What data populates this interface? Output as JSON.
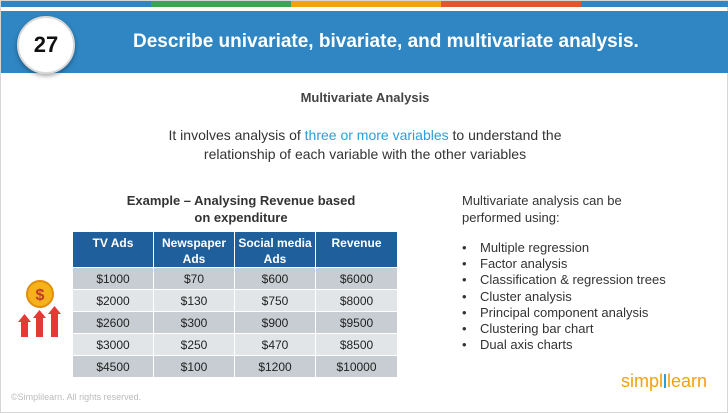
{
  "header": {
    "question_number": "27",
    "title": "Describe univariate, bivariate, and multivariate analysis."
  },
  "section_title": "Multivariate Analysis",
  "intro": {
    "before": "It involves analysis of ",
    "highlight": "three or more variables",
    "after": " to understand the",
    "line2": "relationship of each variable with the other variables"
  },
  "example": {
    "title_line1": "Example – Analysing Revenue based",
    "title_line2": "on expenditure"
  },
  "table": {
    "columns": [
      {
        "line1": "TV Ads",
        "line2": ""
      },
      {
        "line1": "Newspaper",
        "line2": "Ads"
      },
      {
        "line1": "Social media",
        "line2": "Ads"
      },
      {
        "line1": "Revenue",
        "line2": ""
      }
    ],
    "rows": [
      [
        "$1000",
        "$70",
        "$600",
        "$6000"
      ],
      [
        "$2000",
        "$130",
        "$750",
        "$8000"
      ],
      [
        "$2600",
        "$300",
        "$900",
        "$9500"
      ],
      [
        "$3000",
        "$250",
        "$470",
        "$8500"
      ],
      [
        "$4500",
        "$100",
        "$1200",
        "$10000"
      ]
    ]
  },
  "right_panel": {
    "intro_line1": "Multivariate analysis can be",
    "intro_line2": "performed using:",
    "methods": [
      "Multiple regression",
      "Factor analysis",
      "Classification & regression trees",
      "Cluster analysis",
      "Principal component analysis",
      "Clustering bar chart",
      "Dual axis charts"
    ]
  },
  "footer": {
    "copyright": "©Simplilearn. All rights reserved.",
    "logo_left": "simpl",
    "logo_right": "learn"
  },
  "icons": {
    "money_growth": "money-growth-icon"
  },
  "colors": {
    "header_blue": "#2f86c2",
    "table_header": "#1f5f9b",
    "highlight": "#2c9fd8",
    "logo_orange": "#f2a20d",
    "strip": [
      "#2f86c2",
      "#3aa655",
      "#f2a20d",
      "#e2552d",
      "#2f86c2"
    ]
  }
}
